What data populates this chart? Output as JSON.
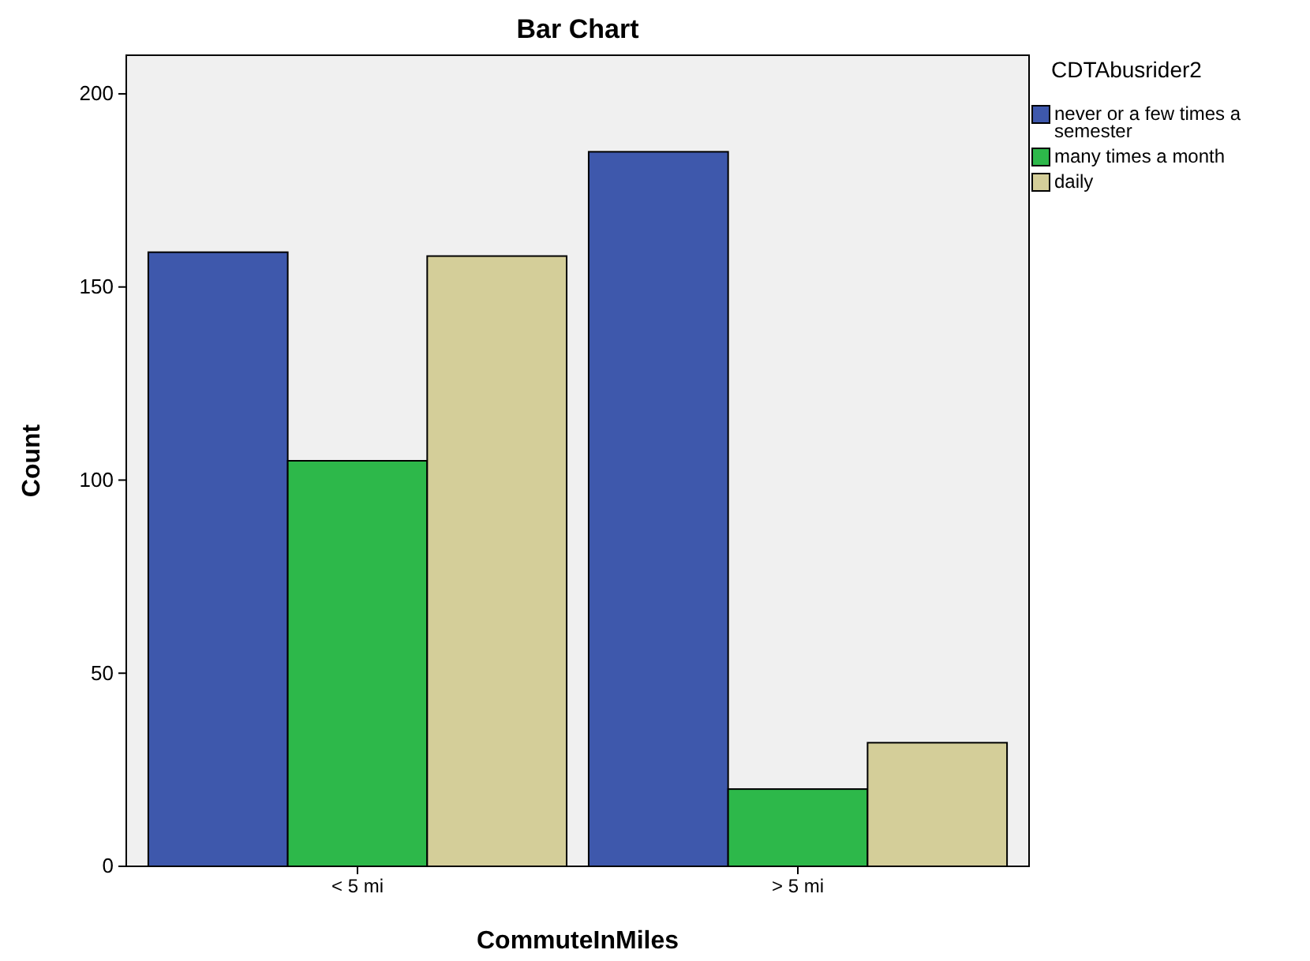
{
  "chart_data": {
    "type": "bar",
    "title": "Bar Chart",
    "xlabel": "CommuteInMiles",
    "ylabel": "Count",
    "legend_title": "CDTAbusrider2",
    "categories": [
      "< 5 mi",
      "> 5 mi"
    ],
    "series": [
      {
        "name": "never or a few times a semester",
        "color": "#3e58ac",
        "values": [
          159,
          185
        ]
      },
      {
        "name": "many times a month",
        "color": "#2db84a",
        "values": [
          105,
          20
        ]
      },
      {
        "name": "daily",
        "color": "#d4ce99",
        "values": [
          158,
          32
        ]
      }
    ],
    "ylim": [
      0,
      210
    ],
    "yticks": [
      0,
      50,
      100,
      150,
      200
    ],
    "grid": false,
    "legend": "top right"
  }
}
